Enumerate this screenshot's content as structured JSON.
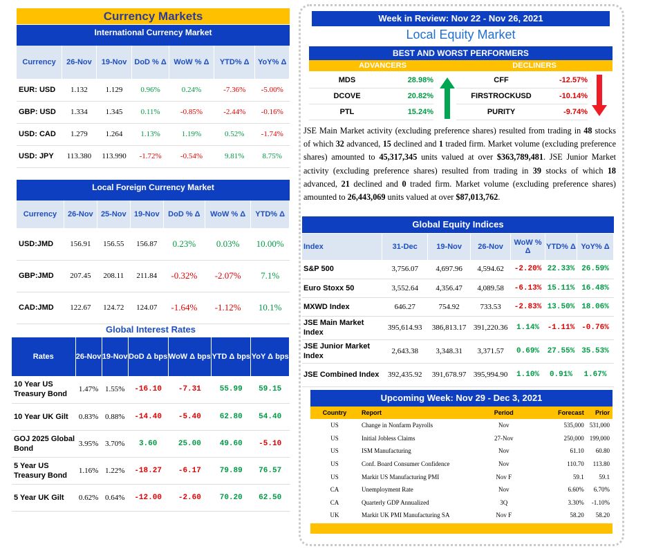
{
  "title": "Currency Markets",
  "intl": {
    "header": "International Currency Market",
    "cols": [
      "Currency",
      "26-Nov",
      "19-Nov",
      "DoD % Δ",
      "WoW % Δ",
      "YTD% Δ",
      "YoY% Δ"
    ],
    "rows": [
      {
        "c": "EUR: USD",
        "v1": "1.132",
        "v2": "1.129",
        "dod": "0.96%",
        "wow": "0.24%",
        "ytd": "-7.36%",
        "yoy": "-5.00%"
      },
      {
        "c": "GBP: USD",
        "v1": "1.334",
        "v2": "1.345",
        "dod": "0.11%",
        "wow": "-0.85%",
        "ytd": "-2.44%",
        "yoy": "-0.16%"
      },
      {
        "c": "USD: CAD",
        "v1": "1.279",
        "v2": "1.264",
        "dod": "1.13%",
        "wow": "1.19%",
        "ytd": "0.52%",
        "yoy": "-1.74%"
      },
      {
        "c": "USD: JPY",
        "v1": "113.380",
        "v2": "113.990",
        "dod": "-1.72%",
        "wow": "-0.54%",
        "ytd": "9.81%",
        "yoy": "8.75%"
      }
    ]
  },
  "local_fx": {
    "header": "Local Foreign Currency Market",
    "cols": [
      "Currency",
      "26-Nov",
      "25-Nov",
      "19-Nov",
      "DoD % Δ",
      "WoW % Δ",
      "YTD% Δ"
    ],
    "rows": [
      {
        "c": "USD:JMD",
        "v1": "156.91",
        "v2": "156.55",
        "v3": "156.87",
        "dod": "0.23%",
        "wow": "0.03%",
        "ytd": "10.00%"
      },
      {
        "c": "GBP:JMD",
        "v1": "207.45",
        "v2": "208.11",
        "v3": "211.84",
        "dod": "-0.32%",
        "wow": "-2.07%",
        "ytd": "7.1%"
      },
      {
        "c": "CAD:JMD",
        "v1": "122.67",
        "v2": "124.72",
        "v3": "124.07",
        "dod": "-1.64%",
        "wow": "-1.12%",
        "ytd": "10.1%"
      }
    ]
  },
  "rates": {
    "header": "Global Interest Rates",
    "cols": [
      "Rates",
      "26-Nov",
      "19-Nov",
      "DoD Δ bps",
      "WoW Δ bps",
      "YTD Δ bps",
      "YoY Δ bps"
    ],
    "rows": [
      {
        "c": "10 Year US Treasury Bond",
        "v1": "1.47%",
        "v2": "1.55%",
        "dod": "-16.10",
        "wow": "-7.31",
        "ytd": "55.99",
        "yoy": "59.15"
      },
      {
        "c": "10 Year UK Gilt",
        "v1": "0.83%",
        "v2": "0.88%",
        "dod": "-14.40",
        "wow": "-5.40",
        "ytd": "62.80",
        "yoy": "54.40"
      },
      {
        "c": "GOJ 2025 Global Bond",
        "v1": "3.95%",
        "v2": "3.70%",
        "dod": "3.60",
        "wow": "25.00",
        "ytd": "49.60",
        "yoy": "-5.10"
      },
      {
        "c": "5 Year US Treasury Bond",
        "v1": "1.16%",
        "v2": "1.22%",
        "dod": "-18.27",
        "wow": "-6.17",
        "ytd": "79.89",
        "yoy": "76.57"
      },
      {
        "c": "5 Year UK Gilt",
        "v1": "0.62%",
        "v2": "0.64%",
        "dod": "-12.00",
        "wow": "-2.60",
        "ytd": "70.20",
        "yoy": "62.50"
      }
    ]
  },
  "week_title": "Week in Review:  Nov 22 - Nov 26, 2021",
  "local_title": "Local Equity Market",
  "bw": {
    "header": "BEST AND WORST PERFORMERS",
    "adv_label": "ADVANCERS",
    "dec_label": "DECLINERS",
    "adv": [
      {
        "s": "MDS",
        "v": "28.98%"
      },
      {
        "s": "DCOVE",
        "v": "20.82%"
      },
      {
        "s": "PTL",
        "v": "15.24%"
      }
    ],
    "dec": [
      {
        "s": "CFF",
        "v": "-12.57%"
      },
      {
        "s": "FIRSTROCKUSD",
        "v": "-10.14%"
      },
      {
        "s": "PURITY",
        "v": "-9.74%"
      }
    ]
  },
  "summary": {
    "p1": "JSE Main Market activity (excluding preference shares) resulted from trading in ",
    "b1": "48",
    "p2": " stocks of which ",
    "b2": "32",
    "p3": " advanced, ",
    "b3": "15",
    "p4": " declined and ",
    "b4": "1",
    "p5": " traded firm. Market volume (excluding preference shares) amounted to ",
    "b5": "45,317,345",
    "p6": " units valued at over ",
    "b6": "$363,789,481",
    "p7": ". JSE Junior Market activity (excluding preference shares) resulted from trading in ",
    "b7": "39",
    "p8": " stocks of which ",
    "b8": "18",
    "p9": " advanced, ",
    "b9": "21",
    "p10": " declined and ",
    "b10": "0",
    "p11": " traded firm. Market volume (excluding preference shares) amounted to ",
    "b11": "26,443,069",
    "p12": " units valued at over ",
    "b12": "$87,013,762",
    "p13": "."
  },
  "gei": {
    "header": "Global Equity Indices",
    "cols": [
      "Index",
      "31-Dec",
      "19-Nov",
      "26-Nov",
      "WoW % Δ",
      "YTD% Δ",
      "YoY% Δ"
    ],
    "rows": [
      {
        "c": "S&P 500",
        "v1": "3,756.07",
        "v2": "4,697.96",
        "v3": "4,594.62",
        "wow": "-2.20%",
        "ytd": "22.33%",
        "yoy": "26.59%"
      },
      {
        "c": "Euro Stoxx 50",
        "v1": "3,552.64",
        "v2": "4,356.47",
        "v3": "4,089.58",
        "wow": "-6.13%",
        "ytd": "15.11%",
        "yoy": "16.48%"
      },
      {
        "c": "MXWD  Index",
        "v1": "646.27",
        "v2": "754.92",
        "v3": "733.53",
        "wow": "-2.83%",
        "ytd": "13.50%",
        "yoy": "18.06%"
      },
      {
        "c": "JSE Main Market Index",
        "v1": "395,614.93",
        "v2": "386,813.17",
        "v3": "391,220.36",
        "wow": "1.14%",
        "ytd": "-1.11%",
        "yoy": "-0.76%"
      },
      {
        "c": "JSE Junior Market Index",
        "v1": "2,643.38",
        "v2": "3,348.31",
        "v3": "3,371.57",
        "wow": "0.69%",
        "ytd": "27.55%",
        "yoy": "35.53%"
      },
      {
        "c": "JSE Combined Index",
        "v1": "392,435.92",
        "v2": "391,678.97",
        "v3": "395,994.90",
        "wow": "1.10%",
        "ytd": "0.91%",
        "yoy": "1.67%"
      }
    ]
  },
  "upcoming": {
    "header": "Upcoming Week:  Nov 29 - Dec 3, 2021",
    "cols": [
      "Country",
      "Report",
      "Period",
      "Forecast",
      "Prior"
    ],
    "rows": [
      {
        "c": "US",
        "r": "Change in Nonfarm Payrolls",
        "p": "Nov",
        "f": "535,000",
        "pr": "531,000"
      },
      {
        "c": "US",
        "r": "Initial Jobless Claims",
        "p": "27-Nov",
        "f": "250,000",
        "pr": "199,000"
      },
      {
        "c": "US",
        "r": "ISM Manufacturing",
        "p": "Nov",
        "f": "61.10",
        "pr": "60.80"
      },
      {
        "c": "US",
        "r": "Conf. Board Consumer Confidence",
        "p": "Nov",
        "f": "110.70",
        "pr": "113.80"
      },
      {
        "c": "US",
        "r": "Markit US Manufacturing PMI",
        "p": "Nov F",
        "f": "59.1",
        "pr": "59.1"
      },
      {
        "c": "CA",
        "r": "Unemployment Rate",
        "p": "Nov",
        "f": "6.60%",
        "pr": "6.70%"
      },
      {
        "c": "CA",
        "r": "Quarterly GDP Annualized",
        "p": "3Q",
        "f": "3.30%",
        "pr": "-1.10%"
      },
      {
        "c": "UK",
        "r": "Markit UK PMI Manufacturing SA",
        "p": "Nov F",
        "f": "58.20",
        "pr": "58.20"
      }
    ]
  },
  "colors": {
    "gold": "#ffc000",
    "blue": "#0d3fc0",
    "up": "#009a44",
    "down": "#e00000"
  }
}
